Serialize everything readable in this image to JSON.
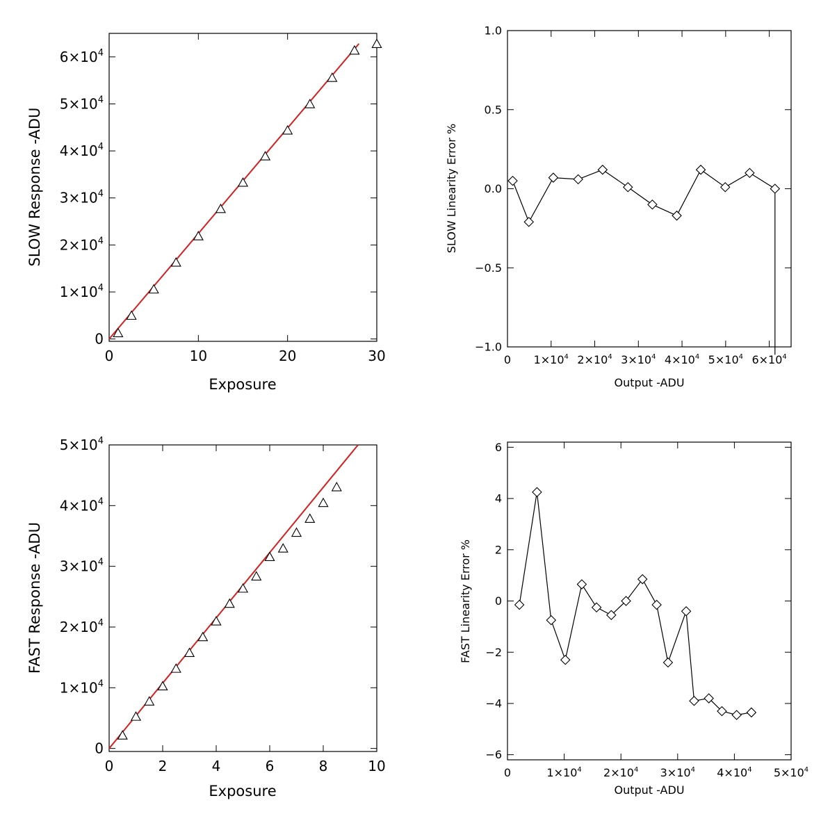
{
  "chart_data": [
    {
      "id": "slow-response",
      "type": "scatter",
      "xlabel": "Exposure",
      "ylabel": "SLOW Response  -ADU",
      "xlim": [
        0,
        30
      ],
      "ylim": [
        -500,
        65000
      ],
      "x_ticks": [
        0,
        10,
        20,
        30
      ],
      "y_ticks": [
        0,
        10000,
        20000,
        30000,
        40000,
        50000,
        60000
      ],
      "y_tick_format": "times10",
      "marker": "triangle",
      "series": [
        {
          "x": [
            1,
            2.5,
            5,
            7.5,
            10,
            12.5,
            15,
            17.5,
            20,
            22.5,
            25,
            27.5,
            30
          ],
          "y": [
            1200,
            4900,
            10500,
            16200,
            21800,
            27600,
            33200,
            38800,
            44300,
            49900,
            55500,
            61300,
            62700
          ]
        }
      ],
      "fit_line": {
        "color": "#d42020",
        "x": [
          0,
          28
        ],
        "y": [
          0,
          62800
        ]
      }
    },
    {
      "id": "slow-linearity",
      "type": "line",
      "xlabel": "Output  -ADU",
      "ylabel": "SLOW Linearity Error %",
      "xlim": [
        0,
        65000
      ],
      "ylim": [
        -1.0,
        1.0
      ],
      "x_ticks": [
        0,
        10000,
        20000,
        30000,
        40000,
        50000,
        60000
      ],
      "x_tick_format": "times10",
      "y_ticks": [
        -1.0,
        -0.5,
        0.0,
        0.5,
        1.0
      ],
      "y_tick_format": "fixed1",
      "marker": "diamond",
      "series": [
        {
          "x": [
            1200,
            4900,
            10500,
            16200,
            21800,
            27600,
            33200,
            38800,
            44300,
            49900,
            55500,
            61300,
            61300
          ],
          "y": [
            0.05,
            -0.21,
            0.07,
            0.06,
            0.12,
            0.01,
            -0.1,
            -0.17,
            0.12,
            0.01,
            0.1,
            0.0,
            -1.05
          ],
          "markers_on": [
            true,
            true,
            true,
            true,
            true,
            true,
            true,
            true,
            true,
            true,
            true,
            true,
            false
          ]
        }
      ]
    },
    {
      "id": "fast-response",
      "type": "scatter",
      "xlabel": "Exposure",
      "ylabel": "FAST Response  -ADU",
      "xlim": [
        0,
        10
      ],
      "ylim": [
        -500,
        50000
      ],
      "x_ticks": [
        0,
        2,
        4,
        6,
        8,
        10
      ],
      "y_ticks": [
        0,
        10000,
        20000,
        30000,
        40000,
        50000
      ],
      "y_tick_format": "times10",
      "marker": "triangle",
      "series": [
        {
          "x": [
            0.5,
            1,
            1.5,
            2,
            2.5,
            3,
            3.5,
            4,
            4.5,
            5,
            5.5,
            6,
            6.5,
            7,
            7.5,
            8,
            8.5
          ],
          "y": [
            2100,
            5200,
            7700,
            10200,
            13100,
            15700,
            18300,
            20900,
            23800,
            26300,
            28300,
            31500,
            32900,
            35500,
            37800,
            40400,
            43000
          ]
        }
      ],
      "fit_line": {
        "color": "#d42020",
        "x": [
          0,
          9.3
        ],
        "y": [
          0,
          50000
        ]
      }
    },
    {
      "id": "fast-linearity",
      "type": "line",
      "xlabel": "Output  -ADU",
      "ylabel": "FAST Linearity Error %",
      "xlim": [
        0,
        50000
      ],
      "ylim": [
        -6.2,
        6.2
      ],
      "x_ticks": [
        0,
        10000,
        20000,
        30000,
        40000,
        50000
      ],
      "x_tick_format": "times10",
      "y_ticks": [
        -6,
        -4,
        -2,
        0,
        2,
        4,
        6
      ],
      "y_tick_format": "int",
      "marker": "diamond",
      "series": [
        {
          "x": [
            2100,
            5200,
            7700,
            10200,
            13100,
            15700,
            18300,
            20900,
            23800,
            26300,
            28300,
            31500,
            32900,
            35500,
            37800,
            40400,
            43000
          ],
          "y": [
            -0.15,
            4.25,
            -0.75,
            -2.3,
            0.65,
            -0.25,
            -0.55,
            0.0,
            0.85,
            -0.15,
            -2.4,
            -0.4,
            -3.9,
            -3.8,
            -4.3,
            -4.45,
            -4.35
          ]
        }
      ]
    }
  ]
}
